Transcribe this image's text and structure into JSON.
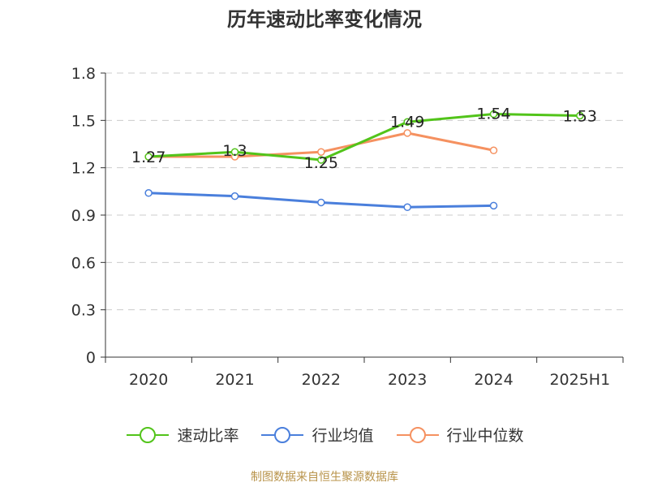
{
  "chart_data": {
    "type": "line",
    "title": "历年速动比率变化情况",
    "categories": [
      "2020",
      "2021",
      "2022",
      "2023",
      "2024",
      "2025H1"
    ],
    "yticks": [
      "0",
      "0.3",
      "0.6",
      "0.9",
      "1.2",
      "1.5",
      "1.8"
    ],
    "ylim": [
      0,
      1.8
    ],
    "grid": true,
    "legend_position": "bottom",
    "series": [
      {
        "name": "速动比率",
        "color": "#52c41a",
        "values": [
          1.27,
          1.3,
          1.25,
          1.49,
          1.54,
          1.53
        ],
        "labels": [
          "1.27",
          "1.3",
          "1.25",
          "1.49",
          "1.54",
          "1.53"
        ]
      },
      {
        "name": "行业均值",
        "color": "#4a7fdc",
        "values": [
          1.04,
          1.02,
          0.98,
          0.95,
          0.96,
          null
        ]
      },
      {
        "name": "行业中位数",
        "color": "#f59160",
        "values": [
          1.27,
          1.27,
          1.3,
          1.42,
          1.31,
          null
        ]
      }
    ]
  },
  "source": "制图数据来自恒生聚源数据库"
}
